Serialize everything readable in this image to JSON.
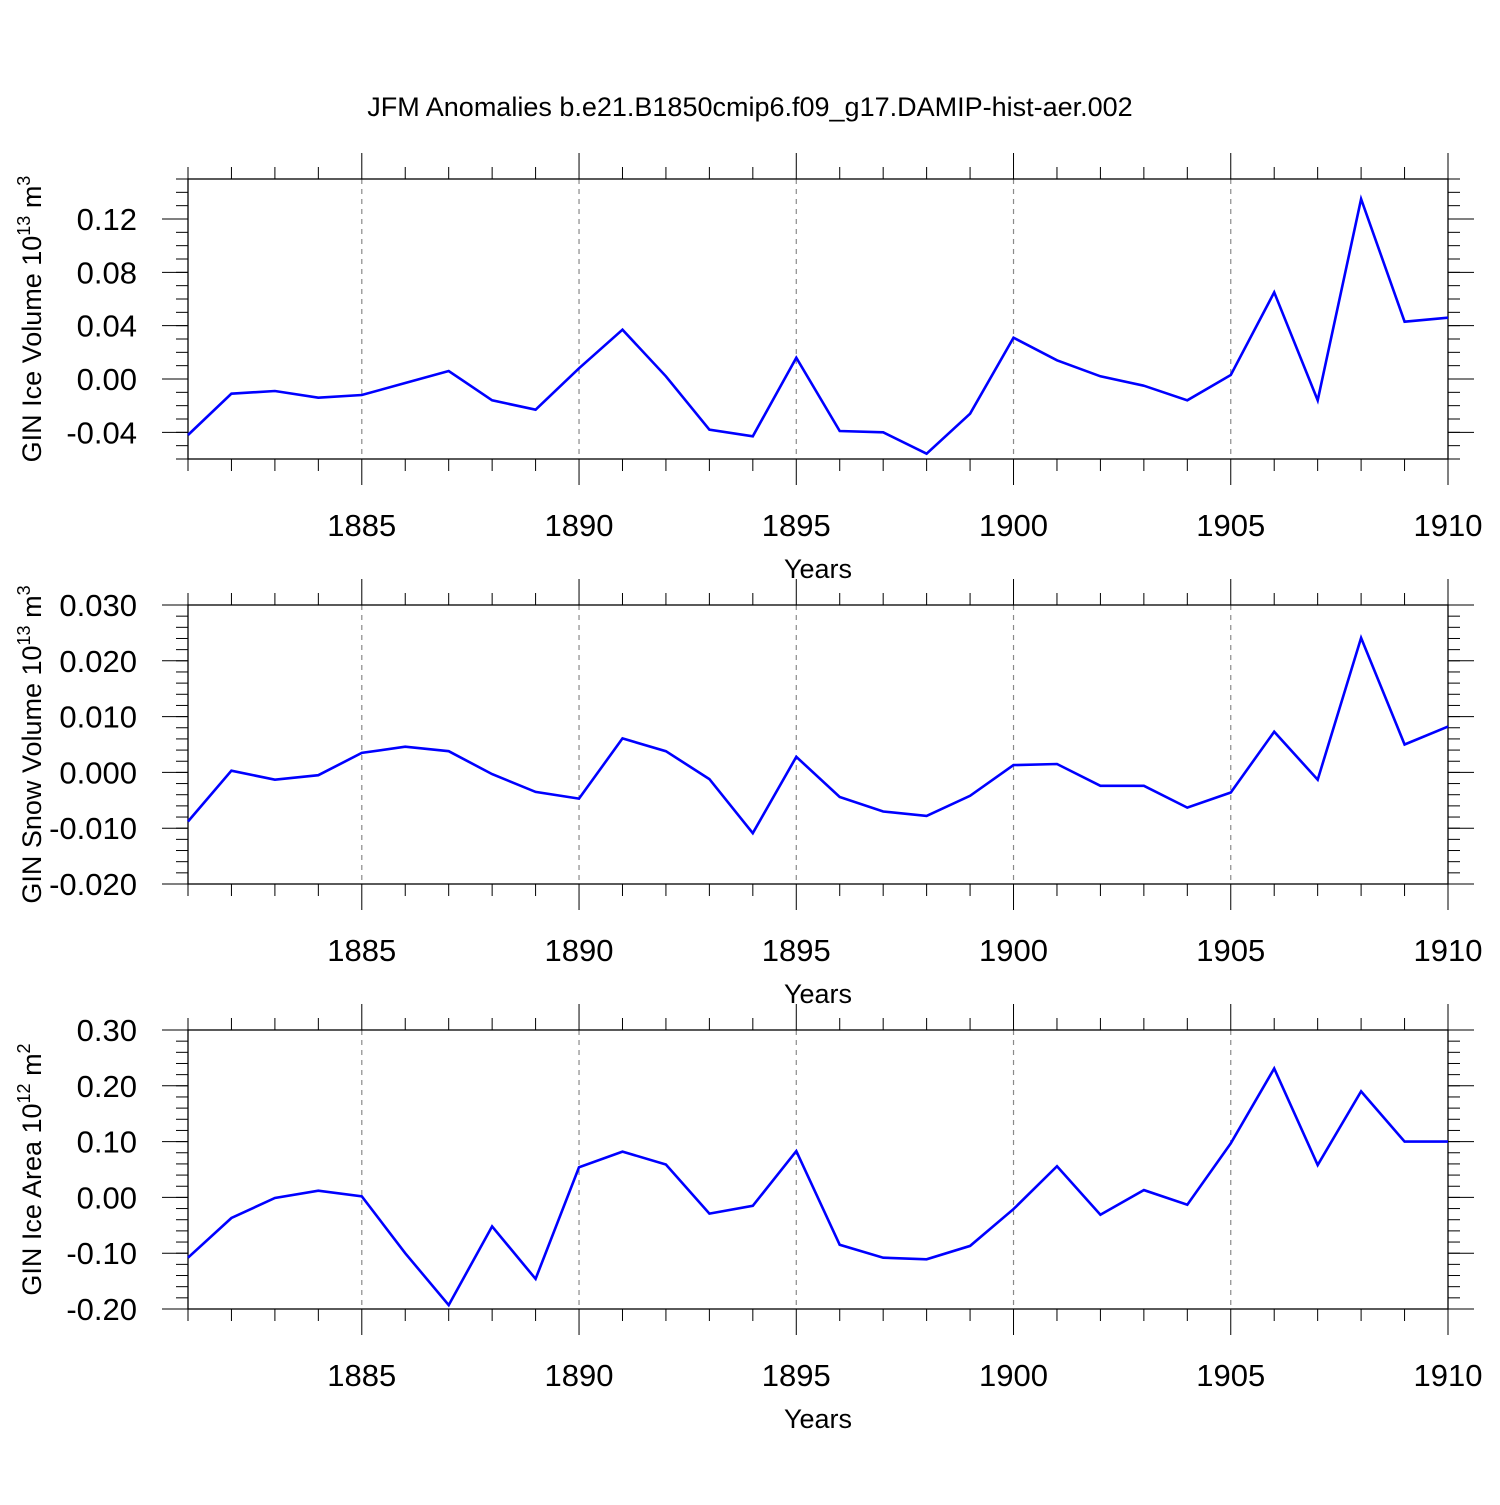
{
  "title": "JFM Anomalies b.e21.B1850cmip6.f09_g17.DAMIP-hist-aer.002",
  "line_color": "#0000ff",
  "chart_data": [
    {
      "type": "line",
      "ylabel": "GIN Ice Volume 10",
      "ylabel_exp": "13",
      "ylabel_unit": " m",
      "ylabel_unit_exp": "3",
      "xlabel": "Years",
      "xlim": [
        1881,
        1910
      ],
      "ylim": [
        -0.06,
        0.15
      ],
      "yticks": [
        -0.04,
        0.0,
        0.04,
        0.08,
        0.12
      ],
      "ytick_labels": [
        "-0.04",
        "0.00",
        "0.04",
        "0.08",
        "0.12"
      ],
      "yminor_step": 0.01,
      "xticks": [
        1885,
        1890,
        1895,
        1900,
        1905,
        1910
      ],
      "xtick_labels": [
        "1885",
        "1890",
        "1895",
        "1900",
        "1905",
        "1910"
      ],
      "grid": "dashed vertical at major x ticks",
      "x": [
        1881,
        1882,
        1883,
        1884,
        1885,
        1886,
        1887,
        1888,
        1889,
        1890,
        1891,
        1892,
        1893,
        1894,
        1895,
        1896,
        1897,
        1898,
        1899,
        1900,
        1901,
        1902,
        1903,
        1904,
        1905,
        1906,
        1907,
        1908,
        1909,
        1910
      ],
      "series": [
        {
          "values": [
            -0.042,
            -0.011,
            -0.009,
            -0.014,
            -0.012,
            -0.003,
            0.006,
            -0.016,
            -0.023,
            0.008,
            0.037,
            0.002,
            -0.038,
            -0.043,
            0.016,
            -0.039,
            -0.04,
            -0.056,
            -0.026,
            0.031,
            0.014,
            0.002,
            -0.005,
            -0.016,
            0.003,
            0.065,
            -0.016,
            0.135,
            0.043,
            0.046
          ]
        }
      ]
    },
    {
      "type": "line",
      "ylabel": "GIN Snow Volume 10",
      "ylabel_exp": "13",
      "ylabel_unit": " m",
      "ylabel_unit_exp": "3",
      "xlabel": "Years",
      "xlim": [
        1881,
        1910
      ],
      "ylim": [
        -0.02,
        0.03
      ],
      "yticks": [
        -0.02,
        -0.01,
        0.0,
        0.01,
        0.02,
        0.03
      ],
      "ytick_labels": [
        "-0.020",
        "-0.010",
        "0.000",
        "0.010",
        "0.020",
        "0.030"
      ],
      "yminor_step": 0.002,
      "xticks": [
        1885,
        1890,
        1895,
        1900,
        1905,
        1910
      ],
      "xtick_labels": [
        "1885",
        "1890",
        "1895",
        "1900",
        "1905",
        "1910"
      ],
      "grid": "dashed vertical at major x ticks",
      "x": [
        1881,
        1882,
        1883,
        1884,
        1885,
        1886,
        1887,
        1888,
        1889,
        1890,
        1891,
        1892,
        1893,
        1894,
        1895,
        1896,
        1897,
        1898,
        1899,
        1900,
        1901,
        1902,
        1903,
        1904,
        1905,
        1906,
        1907,
        1908,
        1909,
        1910
      ],
      "series": [
        {
          "values": [
            -0.0088,
            0.0003,
            -0.0013,
            -0.0005,
            0.0035,
            0.0046,
            0.0038,
            -0.0003,
            -0.0035,
            -0.0047,
            0.0061,
            0.0038,
            -0.0012,
            -0.0109,
            0.0028,
            -0.0044,
            -0.007,
            -0.0078,
            -0.0042,
            0.0013,
            0.0015,
            -0.0024,
            -0.0024,
            -0.0063,
            -0.0036,
            0.0073,
            -0.0013,
            0.0241,
            0.005,
            0.0082
          ]
        }
      ]
    },
    {
      "type": "line",
      "ylabel": "GIN Ice Area 10",
      "ylabel_exp": "12",
      "ylabel_unit": " m",
      "ylabel_unit_exp": "2",
      "xlabel": "Years",
      "xlim": [
        1881,
        1910
      ],
      "ylim": [
        -0.2,
        0.3
      ],
      "yticks": [
        -0.2,
        -0.1,
        0.0,
        0.1,
        0.2,
        0.3
      ],
      "ytick_labels": [
        "-0.20",
        "-0.10",
        "0.00",
        "0.10",
        "0.20",
        "0.30"
      ],
      "yminor_step": 0.02,
      "xticks": [
        1885,
        1890,
        1895,
        1900,
        1905,
        1910
      ],
      "xtick_labels": [
        "1885",
        "1890",
        "1895",
        "1900",
        "1905",
        "1910"
      ],
      "grid": "dashed vertical at major x ticks",
      "x": [
        1881,
        1882,
        1883,
        1884,
        1885,
        1886,
        1887,
        1888,
        1889,
        1890,
        1891,
        1892,
        1893,
        1894,
        1895,
        1896,
        1897,
        1898,
        1899,
        1900,
        1901,
        1902,
        1903,
        1904,
        1905,
        1906,
        1907,
        1908,
        1909,
        1910
      ],
      "series": [
        {
          "values": [
            -0.108,
            -0.037,
            -0.001,
            0.012,
            0.002,
            -0.1,
            -0.193,
            -0.052,
            -0.146,
            0.054,
            0.082,
            0.059,
            -0.029,
            -0.015,
            0.083,
            -0.085,
            -0.108,
            -0.111,
            -0.087,
            -0.021,
            0.056,
            -0.031,
            0.013,
            -0.013,
            0.097,
            0.231,
            0.058,
            0.19,
            0.1,
            0.1
          ]
        }
      ]
    }
  ]
}
